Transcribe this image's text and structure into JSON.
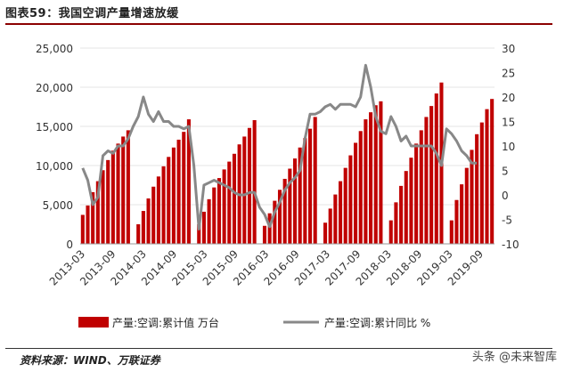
{
  "figure_title": "图表59：我国空调产量增速放缓",
  "source": "资料来源：WIND、万联证券",
  "watermark": "头条 @未来智库",
  "colors": {
    "bar": "#c00000",
    "line": "#888888",
    "title_rule": "#8b0000"
  },
  "chart_data": {
    "type": "bar",
    "title": "",
    "x_tick_labels": [
      "2013-03",
      "2013-09",
      "2014-03",
      "2014-09",
      "2015-03",
      "2015-09",
      "2016-03",
      "2016-09",
      "2017-03",
      "2017-09",
      "2018-03",
      "2018-09",
      "2019-03",
      "2019-09"
    ],
    "y_left": {
      "lim": [
        0,
        25000
      ],
      "ticks": [
        "0",
        "5,000",
        "10,000",
        "15,000",
        "20,000",
        "25,000"
      ]
    },
    "y_right": {
      "lim": [
        -10,
        30
      ],
      "ticks": [
        "-10",
        "-5",
        "0",
        "5",
        "10",
        "15",
        "20",
        "25",
        "30"
      ]
    },
    "legend_position": "bottom",
    "series": [
      {
        "name": "产量:空调:累计值 万台",
        "type": "bar",
        "axis": "left",
        "groups": [
          [
            3700,
            4900,
            6600,
            8000,
            9400,
            10700,
            11900,
            12800,
            13700,
            14500
          ],
          [
            2500,
            4200,
            5800,
            7300,
            8600,
            9900,
            11100,
            12300,
            13300,
            14300,
            15900
          ],
          [
            2500,
            4100,
            5700,
            7200,
            8400,
            9500,
            10500,
            11500,
            12700,
            13700,
            14800,
            15800
          ],
          [
            2300,
            3900,
            5500,
            6900,
            8300,
            9600,
            10900,
            12300,
            13500,
            14700,
            16200
          ],
          [
            2700,
            4500,
            6300,
            8000,
            9700,
            11300,
            12900,
            14400,
            15900,
            16800,
            17700,
            18200
          ],
          [
            3000,
            5300,
            7400,
            9300,
            11000,
            12800,
            14500,
            16200,
            17600,
            19200,
            20600
          ],
          [
            3000,
            5600,
            7600,
            9700,
            12000,
            14000,
            15500,
            17200,
            18500
          ]
        ]
      },
      {
        "name": "产量:空调:累计同比 %",
        "type": "line",
        "axis": "right",
        "values": [
          5.5,
          3.0,
          -2.0,
          -0.5,
          8.0,
          9.0,
          8.5,
          10.0,
          10.0,
          11.5,
          14.0,
          16.0,
          20.0,
          16.5,
          15.0,
          17.0,
          15.0,
          15.0,
          14.0,
          14.0,
          13.5,
          14.0,
          6.0,
          -7.0,
          2.0,
          2.5,
          3.0,
          2.5,
          2.0,
          1.5,
          0.5,
          0.0,
          0.0,
          0.5,
          0.5,
          -2.5,
          -4.0,
          -6.5,
          -3.5,
          -1.5,
          1.0,
          2.5,
          3.5,
          5.0,
          11.5,
          16.5,
          16.5,
          17.0,
          18.0,
          18.5,
          17.5,
          18.5,
          18.5,
          18.5,
          18.0,
          20.0,
          26.5,
          22.0,
          16.0,
          13.0,
          12.5,
          16.0,
          14.0,
          11.0,
          12.0,
          10.0,
          10.0,
          10.0,
          10.0,
          10.0,
          8.5,
          6.0,
          13.5,
          12.5,
          11.0,
          9.0,
          8.0,
          6.5,
          6.5
        ]
      }
    ]
  }
}
